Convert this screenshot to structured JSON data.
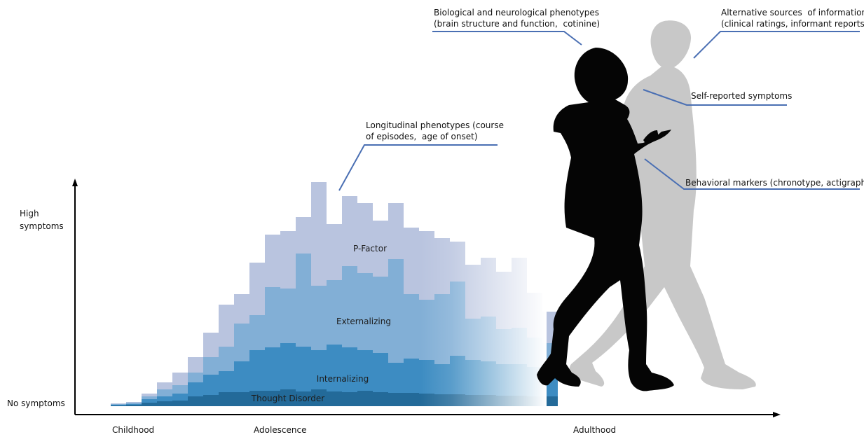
{
  "axes": {
    "y_high": "High\nsymptoms",
    "y_low": "No symptoms",
    "x_labels": [
      "Childhood",
      "Adolescence",
      "Adulthood"
    ]
  },
  "bands": [
    {
      "label": "P-Factor",
      "color": "#b9c4df"
    },
    {
      "label": "Externalizing",
      "color": "#82afd6"
    },
    {
      "label": "Internalizing",
      "color": "#3d8cc2"
    },
    {
      "label": "Thought Disorder",
      "color": "#236a99"
    }
  ],
  "callouts": {
    "longitudinal": "Longitudinal phenotypes (course\nof episodes,  age of onset)",
    "biological": "Biological and neurological phenotypes\n(brain structure and function,  cotinine)",
    "alternative": "Alternative sources  of information\n(clinical ratings, informant reports)",
    "self_reported": "Self-reported symptoms",
    "behavioral": "Behavioral markers (chronotype, actigraphy)"
  },
  "colors": {
    "callout_line": "#4a6fb3",
    "silhouette_dark": "#050505",
    "silhouette_light": "#c8c8c8"
  }
}
